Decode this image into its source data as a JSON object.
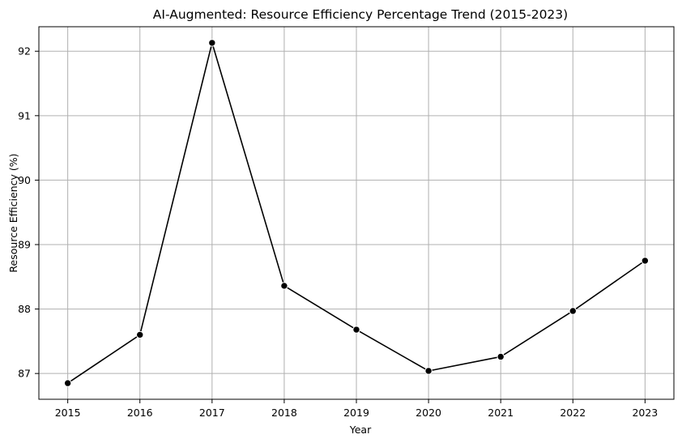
{
  "chart_data": {
    "type": "line",
    "title": "AI-Augmented: Resource Efficiency Percentage Trend (2015-2023)",
    "xlabel": "Year",
    "ylabel": "Resource Efficiency (%)",
    "x": [
      2015,
      2016,
      2017,
      2018,
      2019,
      2020,
      2021,
      2022,
      2023
    ],
    "series": [
      {
        "values": [
          86.85,
          87.6,
          92.13,
          88.36,
          87.68,
          87.04,
          87.26,
          87.97,
          88.75
        ]
      }
    ],
    "xlim": [
      2014.6,
      2023.4
    ],
    "ylim": [
      86.6,
      92.38
    ],
    "yticks": [
      87,
      88,
      89,
      90,
      91,
      92
    ],
    "xticks": [
      2015,
      2016,
      2017,
      2018,
      2019,
      2020,
      2021,
      2022,
      2023
    ],
    "grid": true,
    "line_color": "#000000",
    "marker": "circle"
  }
}
